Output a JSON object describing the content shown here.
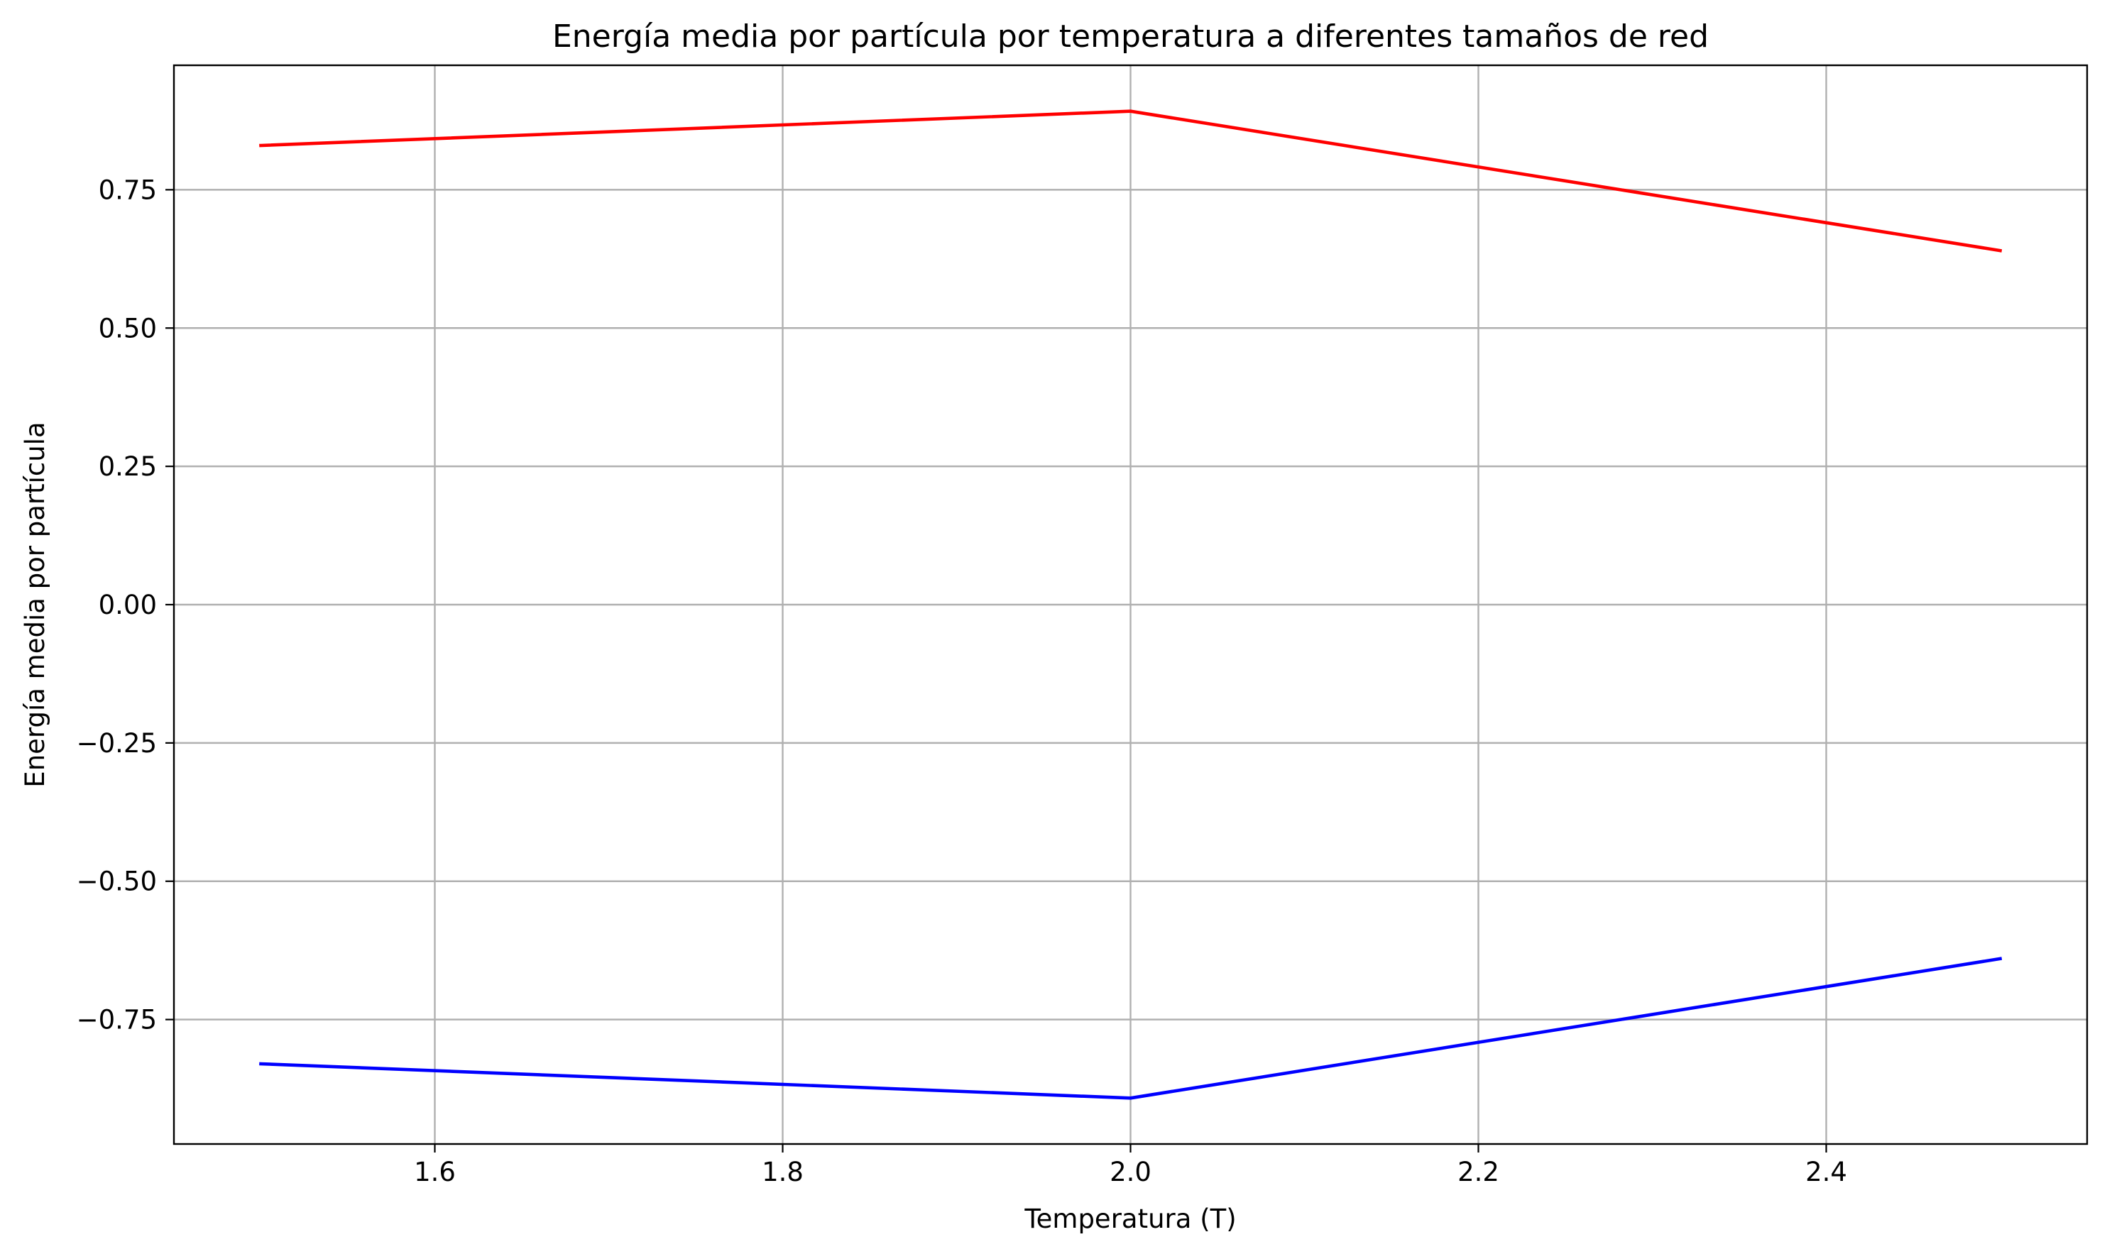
{
  "chart_data": {
    "type": "line",
    "title": "Energía media por partícula por temperatura a diferentes tamaños de red",
    "xlabel": "Temperatura (T)",
    "ylabel": "Energía media por partícula",
    "xlim": [
      1.45,
      2.55
    ],
    "ylim": [
      -0.975,
      0.975
    ],
    "xticks": [
      1.6,
      1.8,
      2.0,
      2.2,
      2.4
    ],
    "xtick_labels": [
      "1.6",
      "1.8",
      "2.0",
      "2.2",
      "2.4"
    ],
    "yticks": [
      0.75,
      0.5,
      0.25,
      0.0,
      -0.25,
      -0.5,
      -0.75
    ],
    "ytick_labels": [
      "0.75",
      "0.50",
      "0.25",
      "0.00",
      "−0.25",
      "−0.50",
      "−0.75"
    ],
    "grid": true,
    "series": [
      {
        "color": "#ff0000",
        "x": [
          1.5,
          2.0,
          2.5
        ],
        "y": [
          0.83,
          0.892,
          0.64
        ]
      },
      {
        "color": "#0000ff",
        "x": [
          1.5,
          2.0,
          2.5
        ],
        "y": [
          -0.83,
          -0.892,
          -0.64
        ]
      }
    ]
  }
}
